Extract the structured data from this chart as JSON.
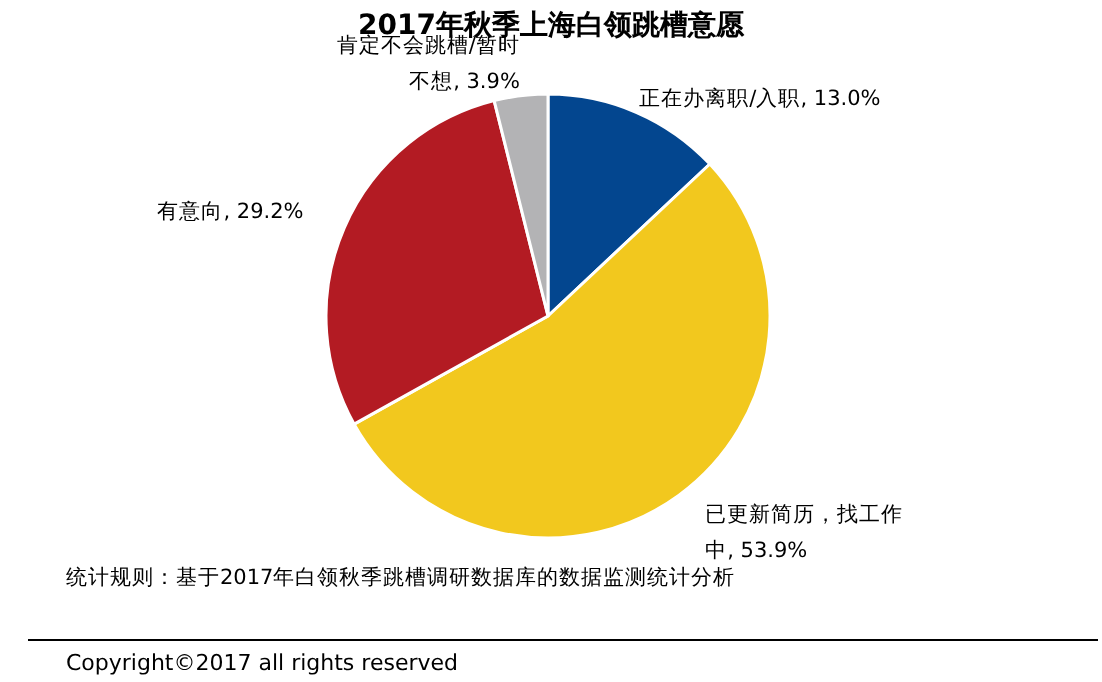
{
  "chart_data": {
    "type": "pie",
    "title": "2017年秋季上海白领跳槽意愿",
    "categories": [
      "正在办离职/入职",
      "已更新简历，找工作中",
      "有意向",
      "肯定不会跳槽/暂时不想"
    ],
    "values": [
      13.0,
      53.9,
      29.2,
      3.9
    ],
    "value_labels": [
      "13.0%",
      "53.9%",
      "29.2%",
      "3.9%"
    ],
    "colors": [
      "#03468f",
      "#f2c81e",
      "#b31b23",
      "#b3b3b5"
    ],
    "annotations": [
      "统计规则：基于2017年白领秋季跳槽调研数据库的数据监测统计分析",
      "Copyright©2017 all rights reserved"
    ]
  }
}
